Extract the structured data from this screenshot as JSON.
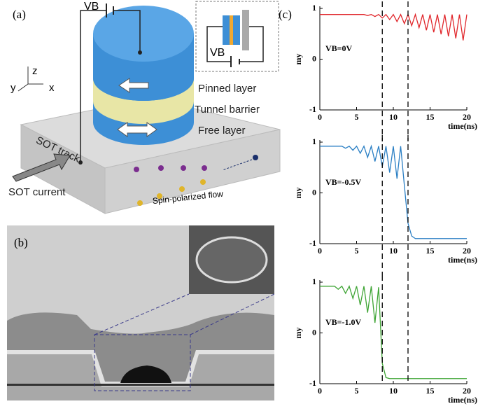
{
  "panel_a": {
    "label": "(a)",
    "vb": "VB",
    "inset_vb": "VB",
    "axis_z": "z",
    "axis_y": "y",
    "axis_x": "x",
    "pinned": "Pinned layer",
    "barrier": "Tunnel barrier",
    "free": "Free layer",
    "track": "SOT track",
    "current": "SOT current",
    "flow": "Spin-polarized flow"
  },
  "panel_b": {
    "label": "(b)"
  },
  "panel_c": {
    "label": "(c)"
  },
  "chart_data": [
    {
      "type": "line",
      "annotation": "VB=0V",
      "xlabel": "time(ns)",
      "ylabel": "my",
      "xlim": [
        0,
        20
      ],
      "xticks": [
        0,
        5,
        10,
        15,
        20
      ],
      "ylim": [
        -1,
        1
      ],
      "yticks": [
        -1,
        0,
        1
      ],
      "vlines": [
        8.5,
        12
      ],
      "x": [
        0,
        0.5,
        1,
        1.5,
        2,
        2.5,
        3,
        3.5,
        4,
        4.5,
        5,
        5.5,
        6,
        6.5,
        7,
        7.5,
        8,
        8.5,
        9,
        9.5,
        10,
        10.5,
        11,
        11.5,
        12,
        12.5,
        13,
        13.5,
        14,
        14.5,
        15,
        15.5,
        16,
        16.5,
        17,
        17.5,
        18,
        18.5,
        19,
        19.5,
        20
      ],
      "series": [
        {
          "color": "#e0262b",
          "values": [
            0.88,
            0.88,
            0.88,
            0.88,
            0.88,
            0.88,
            0.88,
            0.88,
            0.88,
            0.88,
            0.88,
            0.88,
            0.88,
            0.86,
            0.88,
            0.84,
            0.88,
            0.81,
            0.88,
            0.78,
            0.88,
            0.74,
            0.88,
            0.7,
            0.88,
            0.66,
            0.88,
            0.62,
            0.88,
            0.57,
            0.88,
            0.53,
            0.88,
            0.49,
            0.88,
            0.45,
            0.88,
            0.41,
            0.88,
            0.37,
            0.88
          ]
        }
      ]
    },
    {
      "type": "line",
      "annotation": "VB=-0.5V",
      "xlabel": "time(ns)",
      "ylabel": "my",
      "xlim": [
        0,
        20
      ],
      "xticks": [
        0,
        5,
        10,
        15,
        20
      ],
      "ylim": [
        -1,
        1
      ],
      "yticks": [
        -1,
        0,
        1
      ],
      "vlines": [
        8.5,
        12
      ],
      "x": [
        0,
        0.5,
        1,
        1.5,
        2,
        2.5,
        3,
        3.5,
        4,
        4.5,
        5,
        5.5,
        6,
        6.5,
        7,
        7.5,
        8,
        8.5,
        9,
        9.5,
        10,
        10.5,
        11,
        11.5,
        12,
        12.5,
        13,
        13.5,
        14,
        14.5,
        15,
        15.5,
        16,
        16.5,
        17,
        17.5,
        18,
        18.5,
        19,
        19.5,
        20
      ],
      "series": [
        {
          "color": "#2a7fc4",
          "values": [
            0.92,
            0.92,
            0.92,
            0.92,
            0.92,
            0.92,
            0.92,
            0.88,
            0.92,
            0.84,
            0.92,
            0.78,
            0.92,
            0.7,
            0.92,
            0.62,
            0.92,
            0.52,
            0.92,
            0.4,
            0.92,
            0.28,
            0.92,
            0.15,
            -0.6,
            -0.85,
            -0.9,
            -0.9,
            -0.9,
            -0.9,
            -0.9,
            -0.9,
            -0.9,
            -0.9,
            -0.9,
            -0.9,
            -0.9,
            -0.9,
            -0.9,
            -0.9,
            -0.9
          ]
        }
      ]
    },
    {
      "type": "line",
      "annotation": "VB=-1.0V",
      "xlabel": "time(ns)",
      "ylabel": "my",
      "xlim": [
        0,
        20
      ],
      "xticks": [
        0,
        5,
        10,
        15,
        20
      ],
      "ylim": [
        -1,
        1
      ],
      "yticks": [
        -1,
        0,
        1
      ],
      "vlines": [
        8.5,
        12
      ],
      "x": [
        0,
        0.5,
        1,
        1.5,
        2,
        2.5,
        3,
        3.5,
        4,
        4.5,
        5,
        5.5,
        6,
        6.5,
        7,
        7.5,
        8,
        8.5,
        9,
        9.5,
        10,
        10.5,
        11,
        11.5,
        12,
        12.5,
        13,
        13.5,
        14,
        14.5,
        15,
        15.5,
        16,
        16.5,
        17,
        17.5,
        18,
        18.5,
        19,
        19.5,
        20
      ],
      "series": [
        {
          "color": "#3fa535",
          "values": [
            0.92,
            0.92,
            0.92,
            0.92,
            0.92,
            0.86,
            0.92,
            0.78,
            0.92,
            0.68,
            0.92,
            0.55,
            0.92,
            0.4,
            0.92,
            0.2,
            0.9,
            -0.6,
            -0.88,
            -0.9,
            -0.9,
            -0.9,
            -0.9,
            -0.9,
            -0.9,
            -0.9,
            -0.9,
            -0.9,
            -0.9,
            -0.9,
            -0.9,
            -0.9,
            -0.9,
            -0.9,
            -0.9,
            -0.9,
            -0.9,
            -0.9,
            -0.9,
            -0.9,
            -0.9
          ]
        }
      ]
    }
  ]
}
